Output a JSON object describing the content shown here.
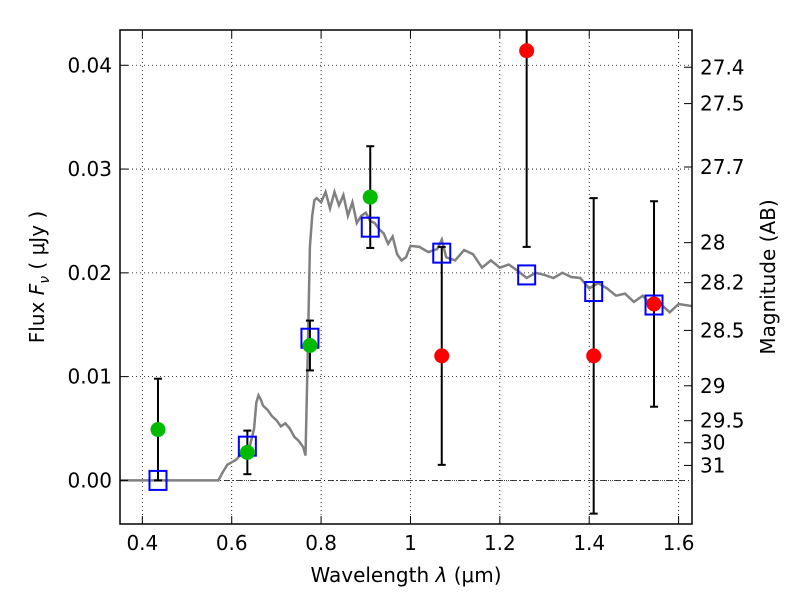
{
  "chart_data": {
    "type": "scatter",
    "xlabel_prefix": "Wavelength",
    "xlabel_symbol": "λ",
    "xlabel_unit": "(μm)",
    "ylabel_prefix": "Flux",
    "ylabel_symbol": "F",
    "ylabel_subscript": "ν",
    "ylabel_unit": "( μJy )",
    "y2label": "Magnitude (AB)",
    "xlim": [
      0.35,
      1.63
    ],
    "ylim": [
      -0.0042,
      0.0434
    ],
    "grid": true,
    "x_ticks": [
      {
        "value": 0.4,
        "label": "0.4"
      },
      {
        "value": 0.6,
        "label": "0.6"
      },
      {
        "value": 0.8,
        "label": "0.8"
      },
      {
        "value": 1.0,
        "label": "1"
      },
      {
        "value": 1.2,
        "label": "1.2"
      },
      {
        "value": 1.4,
        "label": "1.4"
      },
      {
        "value": 1.6,
        "label": "1.6"
      }
    ],
    "y_ticks": [
      {
        "value": 0.0,
        "label": "0.00"
      },
      {
        "value": 0.01,
        "label": "0.01"
      },
      {
        "value": 0.02,
        "label": "0.02"
      },
      {
        "value": 0.03,
        "label": "0.03"
      },
      {
        "value": 0.04,
        "label": "0.04"
      }
    ],
    "mag_ticks": [
      {
        "value": 27.4,
        "label": "27.4"
      },
      {
        "value": 27.5,
        "label": "27.5"
      },
      {
        "value": 27.7,
        "label": "27.7"
      },
      {
        "value": 28.0,
        "label": "28"
      },
      {
        "value": 28.2,
        "label": "28.2"
      },
      {
        "value": 28.5,
        "label": "28.5"
      },
      {
        "value": 29.0,
        "label": "29"
      },
      {
        "value": 29.5,
        "label": "29.5"
      },
      {
        "value": 30.0,
        "label": "30"
      },
      {
        "value": 31.0,
        "label": "31"
      }
    ],
    "mag_zero_point": 23.9,
    "model_sed": {
      "color": "#808080",
      "x": [
        0.35,
        0.57,
        0.58,
        0.59,
        0.61,
        0.62,
        0.63,
        0.635,
        0.64,
        0.65,
        0.655,
        0.66,
        0.665,
        0.67,
        0.68,
        0.69,
        0.7,
        0.71,
        0.72,
        0.73,
        0.74,
        0.75,
        0.76,
        0.765,
        0.77,
        0.775,
        0.78,
        0.785,
        0.79,
        0.8,
        0.81,
        0.815,
        0.82,
        0.83,
        0.84,
        0.85,
        0.86,
        0.87,
        0.88,
        0.89,
        0.9,
        0.91,
        0.92,
        0.93,
        0.94,
        0.95,
        0.96,
        0.97,
        0.98,
        0.99,
        1.0,
        1.02,
        1.04,
        1.06,
        1.07,
        1.08,
        1.1,
        1.12,
        1.14,
        1.16,
        1.18,
        1.2,
        1.22,
        1.24,
        1.26,
        1.28,
        1.3,
        1.32,
        1.34,
        1.36,
        1.38,
        1.4,
        1.42,
        1.44,
        1.46,
        1.48,
        1.5,
        1.52,
        1.54,
        1.56,
        1.58,
        1.6,
        1.63
      ],
      "y": [
        0.0,
        0.0,
        0.0008,
        0.0015,
        0.002,
        0.0025,
        0.0028,
        0.003,
        0.0032,
        0.005,
        0.0075,
        0.0082,
        0.0078,
        0.0072,
        0.0068,
        0.0062,
        0.0058,
        0.0052,
        0.0055,
        0.005,
        0.0042,
        0.0038,
        0.0032,
        0.0024,
        0.012,
        0.0225,
        0.0255,
        0.027,
        0.0272,
        0.0268,
        0.0278,
        0.027,
        0.0262,
        0.0278,
        0.0265,
        0.0275,
        0.0255,
        0.0268,
        0.0248,
        0.0255,
        0.0258,
        0.025,
        0.0248,
        0.0242,
        0.0238,
        0.0228,
        0.0235,
        0.0218,
        0.0212,
        0.0215,
        0.0226,
        0.0225,
        0.022,
        0.0223,
        0.0232,
        0.0215,
        0.0212,
        0.0222,
        0.0218,
        0.0205,
        0.0212,
        0.0205,
        0.0208,
        0.0202,
        0.0195,
        0.02,
        0.0198,
        0.0195,
        0.02,
        0.0196,
        0.0195,
        0.0185,
        0.019,
        0.0185,
        0.0178,
        0.018,
        0.0172,
        0.0178,
        0.0168,
        0.017,
        0.0162,
        0.017,
        0.0168
      ]
    },
    "model_photometry": {
      "marker": "open-square",
      "color": "#0000ff",
      "x": [
        0.435,
        0.635,
        0.775,
        0.91,
        1.07,
        1.26,
        1.41,
        1.545
      ],
      "y": [
        0.0,
        0.0033,
        0.0137,
        0.0244,
        0.0219,
        0.0198,
        0.0182,
        0.0169
      ]
    },
    "observed_detections": {
      "marker": "filled-circle",
      "color": "#00bb00",
      "x": [
        0.435,
        0.635,
        0.775,
        0.91
      ],
      "y": [
        0.0049,
        0.0027,
        0.013,
        0.0273
      ],
      "yerr": [
        0.0049,
        0.0021,
        0.0024,
        0.0049
      ]
    },
    "observed_nondetections": {
      "marker": "filled-circle",
      "color": "#ff0000",
      "x": [
        1.07,
        1.26,
        1.41,
        1.545
      ],
      "y": [
        0.012,
        0.0414,
        0.012,
        0.017
      ],
      "yerr": [
        0.0105,
        0.0189,
        0.0152,
        0.0099
      ]
    }
  }
}
